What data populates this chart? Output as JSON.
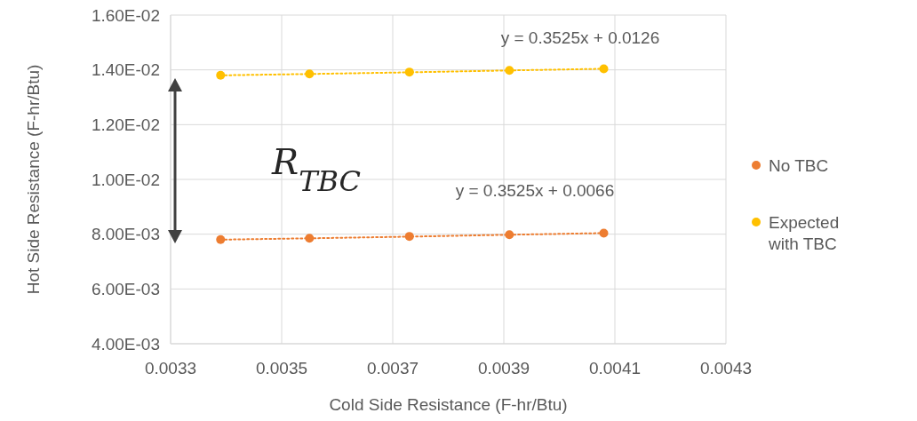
{
  "chart_data": {
    "type": "scatter",
    "xlabel": "Cold Side Resistance (F-hr/Btu)",
    "ylabel": "Hot Side Resistance (F-hr/Btu)",
    "xlim": [
      0.0033,
      0.0043
    ],
    "xticks": [
      0.0033,
      0.0035,
      0.0037,
      0.0039,
      0.0041,
      0.0043
    ],
    "ylim": [
      0.004,
      0.016
    ],
    "yticks": [
      {
        "value": 0.004,
        "label": "4.00E-03"
      },
      {
        "value": 0.006,
        "label": "6.00E-03"
      },
      {
        "value": 0.008,
        "label": "8.00E-03"
      },
      {
        "value": 0.01,
        "label": "1.00E-02"
      },
      {
        "value": 0.012,
        "label": "1.20E-02"
      },
      {
        "value": 0.014,
        "label": "1.40E-02"
      },
      {
        "value": 0.016,
        "label": "1.60E-02"
      }
    ],
    "grid": true,
    "legend": "right",
    "marker": "circle",
    "x": [
      0.00339,
      0.00355,
      0.00373,
      0.00391,
      0.00408
    ],
    "series": [
      {
        "name": "No TBC",
        "color": "#ed7d31",
        "values": [
          0.0078,
          0.00785,
          0.00792,
          0.00798,
          0.00804
        ]
      },
      {
        "name": "Expected with TBC",
        "color": "#ffc000",
        "values": [
          0.0138,
          0.01385,
          0.01392,
          0.01398,
          0.01404
        ]
      },
      {
        "type": "line",
        "color": "#ed7d31",
        "line_style": "dotted",
        "marker": "none",
        "values": [
          0.0078,
          0.00785,
          0.00791,
          0.00798,
          0.00804
        ]
      },
      {
        "type": "line",
        "color": "#ffc000",
        "line_style": "dotted",
        "marker": "none",
        "values": [
          0.0138,
          0.01385,
          0.01391,
          0.01398,
          0.01404
        ]
      }
    ],
    "annotations": [
      "y = 0.3525x + 0.0126",
      "y = 0.3525x + 0.0066",
      "R$_{TBC}$"
    ]
  }
}
